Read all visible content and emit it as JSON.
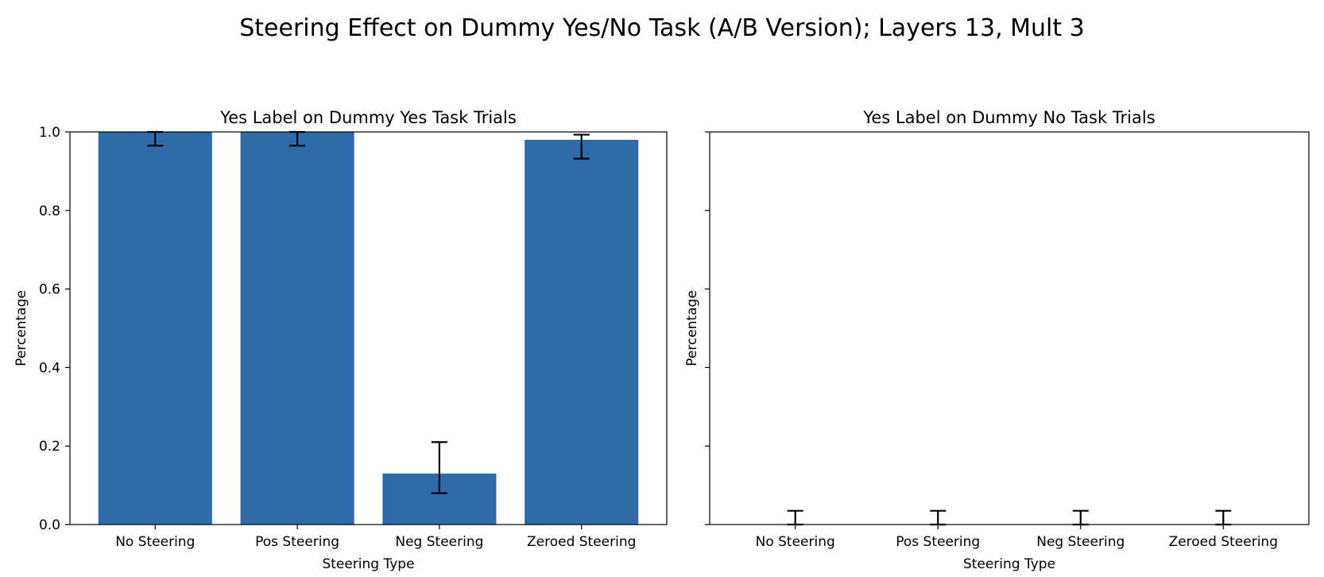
{
  "figure": {
    "suptitle": "Steering Effect on Dummy Yes/No Task (A/B Version); Layers 13, Mult 3",
    "bar_color": "#2e69a8",
    "error_color": "#000000"
  },
  "chart_data": [
    {
      "type": "bar",
      "title": "Yes Label on Dummy Yes Task Trials",
      "xlabel": "Steering Type",
      "ylabel": "Percentage",
      "categories": [
        "No Steering",
        "Pos Steering",
        "Neg Steering",
        "Zeroed Steering"
      ],
      "values": [
        1.0,
        1.0,
        0.13,
        0.98
      ],
      "error_low": [
        0.965,
        0.965,
        0.08,
        0.932
      ],
      "error_high": [
        1.0,
        1.0,
        0.21,
        0.993
      ],
      "ylim": [
        0,
        1.0
      ],
      "yticks": [
        0.0,
        0.2,
        0.4,
        0.6,
        0.8,
        1.0
      ],
      "ytick_labels": [
        "0.0",
        "0.2",
        "0.4",
        "0.6",
        "0.8",
        "1.0"
      ],
      "grid": false,
      "show_ytick_labels": true
    },
    {
      "type": "bar",
      "title": "Yes Label on Dummy No Task Trials",
      "xlabel": "Steering Type",
      "ylabel": "Percentage",
      "categories": [
        "No Steering",
        "Pos Steering",
        "Neg Steering",
        "Zeroed Steering"
      ],
      "values": [
        0.0,
        0.0,
        0.0,
        0.0
      ],
      "error_low": [
        0.0,
        0.0,
        0.0,
        0.0
      ],
      "error_high": [
        0.035,
        0.035,
        0.035,
        0.035
      ],
      "ylim": [
        0,
        1.0
      ],
      "yticks": [
        0.0,
        0.2,
        0.4,
        0.6,
        0.8,
        1.0
      ],
      "ytick_labels": [
        "",
        "",
        "",
        "",
        "",
        ""
      ],
      "grid": false,
      "show_ytick_labels": false
    }
  ]
}
